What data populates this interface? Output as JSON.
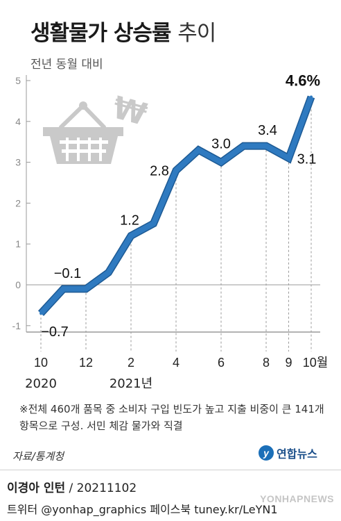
{
  "title": "생활물가 상승률",
  "title_suffix": "추이",
  "subtitle": "전년 동월 대비",
  "chart_data": {
    "type": "line",
    "title": "생활물가 상승률 추이",
    "subtitle": "전년 동월 대비",
    "x": [
      "2020-10",
      "2020-11",
      "2020-12",
      "2021-01",
      "2021-02",
      "2021-03",
      "2021-04",
      "2021-05",
      "2021-06",
      "2021-07",
      "2021-08",
      "2021-09",
      "2021-10"
    ],
    "values": [
      -0.7,
      -0.1,
      -0.1,
      0.3,
      1.2,
      1.5,
      2.8,
      3.3,
      3.0,
      3.4,
      3.4,
      3.1,
      4.6
    ],
    "xtick_labels": [
      {
        "x": "2020-10",
        "label": "10"
      },
      {
        "x": "2020-12",
        "label": "12"
      },
      {
        "x": "2021-02",
        "label": "2"
      },
      {
        "x": "2021-04",
        "label": "4"
      },
      {
        "x": "2021-06",
        "label": "6"
      },
      {
        "x": "2021-08",
        "label": "8"
      },
      {
        "x": "2021-09",
        "label": "9"
      },
      {
        "x": "2021-10",
        "label": "10월"
      }
    ],
    "year_labels": [
      {
        "x": "2020-10",
        "label": "2020"
      },
      {
        "x": "2021-02",
        "label": "2021년"
      }
    ],
    "yticks": [
      "-1",
      "0",
      "1",
      "2",
      "3",
      "4",
      "5"
    ],
    "ylim": [
      -1,
      5
    ],
    "data_labels": [
      {
        "x": "2020-10",
        "label": "−0.7"
      },
      {
        "x": "2020-11",
        "label": "−0.1"
      },
      {
        "x": "2021-02",
        "label": "1.2"
      },
      {
        "x": "2021-04",
        "label": "2.8"
      },
      {
        "x": "2021-06",
        "label": "3.0"
      },
      {
        "x": "2021-08",
        "label": "3.4"
      },
      {
        "x": "2021-09",
        "label": "3.1"
      },
      {
        "x": "2021-10",
        "label": "4.6%"
      }
    ],
    "grid": false,
    "line_color": "#2f7ac0",
    "axis_color": "#999999"
  },
  "footnote": "※전체 460개 품목 중 소비자 구입 빈도가 높고 지출 비중이 큰 141개 항목으로 구성. 서민 체감 물가와 직결",
  "source": "자료/통계청",
  "logo_text": "연합뉴스",
  "credit_name": "이경아 인턴",
  "credit_date": "/ 20211102",
  "social": "트위터 @yonhap_graphics  페이스북 tuney.kr/LeYN1",
  "watermark": "YONHAPNEWS",
  "icons": [
    "shopping-basket-icon",
    "won-sign-icon"
  ]
}
